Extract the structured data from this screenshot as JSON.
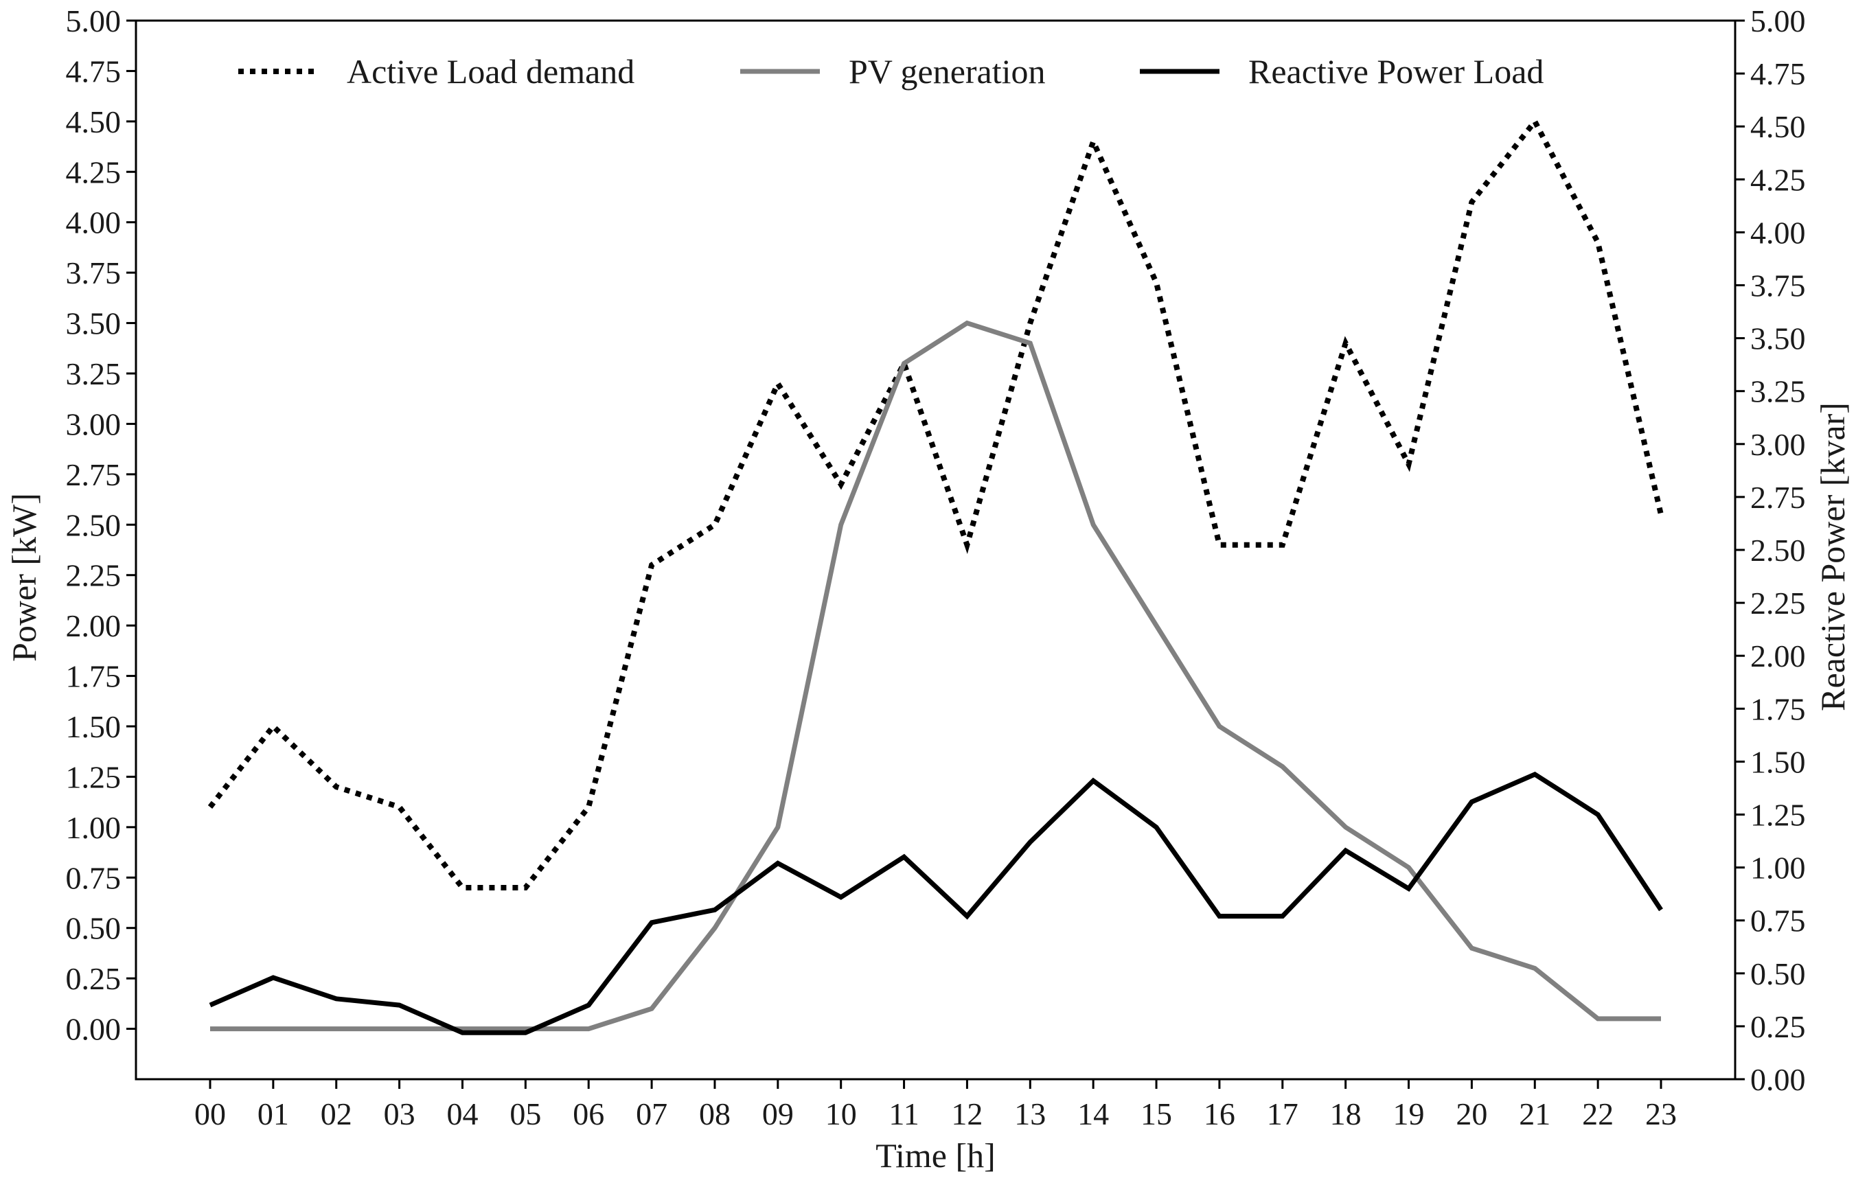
{
  "chart_data": {
    "type": "line",
    "categories": [
      "00",
      "01",
      "02",
      "03",
      "04",
      "05",
      "06",
      "07",
      "08",
      "09",
      "10",
      "11",
      "12",
      "13",
      "14",
      "15",
      "16",
      "17",
      "18",
      "19",
      "20",
      "21",
      "22",
      "23"
    ],
    "xlabel": "Time [h]",
    "ylabel": "Power [kW]",
    "y2label": "Reactive Power [kvar]",
    "ylim": [
      -0.25,
      5.0
    ],
    "y2lim": [
      0.0,
      5.0
    ],
    "yticks": [
      "0.00",
      "0.25",
      "0.50",
      "0.75",
      "1.00",
      "1.25",
      "1.50",
      "1.75",
      "2.00",
      "2.25",
      "2.50",
      "2.75",
      "3.00",
      "3.25",
      "3.50",
      "3.75",
      "4.00",
      "4.25",
      "4.50",
      "4.75",
      "5.00"
    ],
    "y2ticks": [
      "0.00",
      "0.25",
      "0.50",
      "0.75",
      "1.00",
      "1.25",
      "1.50",
      "1.75",
      "2.00",
      "2.25",
      "2.50",
      "2.75",
      "3.00",
      "3.25",
      "3.50",
      "3.75",
      "4.00",
      "4.25",
      "4.50",
      "4.75",
      "5.00"
    ],
    "grid": false,
    "legend_position": "top",
    "series": [
      {
        "name": "Active Load demand",
        "axis": "left",
        "style": "dotted",
        "color": "#000000",
        "values": [
          1.1,
          1.5,
          1.2,
          1.1,
          0.7,
          0.7,
          1.1,
          2.3,
          2.5,
          3.2,
          2.7,
          3.3,
          2.4,
          3.5,
          4.4,
          3.7,
          2.4,
          2.4,
          3.4,
          2.8,
          4.1,
          4.5,
          3.9,
          2.55
        ]
      },
      {
        "name": "PV generation",
        "axis": "left",
        "style": "solid",
        "color": "#808080",
        "values": [
          0.0,
          0.0,
          0.0,
          0.0,
          0.0,
          0.0,
          0.0,
          0.1,
          0.5,
          1.0,
          2.5,
          3.3,
          3.5,
          3.4,
          2.5,
          2.0,
          1.5,
          1.3,
          1.0,
          0.8,
          0.4,
          0.3,
          0.05,
          0.05
        ]
      },
      {
        "name": "Reactive Power Load",
        "axis": "right",
        "style": "solid",
        "color": "#000000",
        "values": [
          0.35,
          0.48,
          0.38,
          0.35,
          0.22,
          0.22,
          0.35,
          0.74,
          0.8,
          1.02,
          0.86,
          1.05,
          0.77,
          1.12,
          1.41,
          1.19,
          0.77,
          0.77,
          1.08,
          0.9,
          1.31,
          1.44,
          1.25,
          0.8
        ]
      }
    ]
  }
}
